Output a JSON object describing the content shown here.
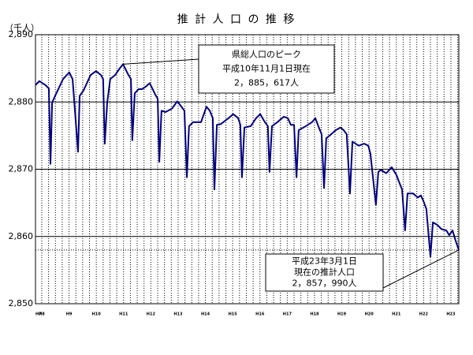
{
  "chart_data": {
    "type": "line",
    "title": "推 計 人 口 の 推 移",
    "y_label": "（千人）",
    "color": "#000080",
    "grid": true,
    "ylim": [
      2850,
      2890
    ],
    "yticks": [
      {
        "value": 2850,
        "label": "2,850"
      },
      {
        "value": 2860,
        "label": "2,860"
      },
      {
        "value": 2870,
        "label": "2,870"
      },
      {
        "value": 2880,
        "label": "2,880"
      },
      {
        "value": 2890,
        "label": "2,890"
      }
    ],
    "xlim": [
      7.77,
      23.29
    ],
    "xticks": [
      {
        "value": 7.77,
        "label": "H7"
      },
      {
        "value": 8,
        "label": "H8"
      },
      {
        "value": 9,
        "label": "H9"
      },
      {
        "value": 10,
        "label": "H10"
      },
      {
        "value": 11,
        "label": "H11"
      },
      {
        "value": 12,
        "label": "H12"
      },
      {
        "value": 13,
        "label": "H13"
      },
      {
        "value": 14,
        "label": "H14"
      },
      {
        "value": 15,
        "label": "H15"
      },
      {
        "value": 16,
        "label": "H16"
      },
      {
        "value": 17,
        "label": "H17"
      },
      {
        "value": 18,
        "label": "H18"
      },
      {
        "value": 19,
        "label": "H19"
      },
      {
        "value": 20,
        "label": "H20"
      },
      {
        "value": 21,
        "label": "H21"
      },
      {
        "value": 22,
        "label": "H22"
      },
      {
        "value": 23,
        "label": "H23"
      }
    ],
    "x": [
      7.77,
      7.91,
      8.14,
      8.26,
      8.32,
      8.38,
      8.49,
      8.78,
      9.01,
      9.13,
      9.33,
      9.39,
      9.53,
      9.79,
      9.99,
      10.17,
      10.25,
      10.31,
      10.4,
      10.51,
      10.69,
      10.86,
      10.98,
      11.18,
      11.27,
      11.32,
      11.41,
      11.55,
      11.67,
      11.82,
      11.96,
      12.16,
      12.25,
      12.31,
      12.39,
      12.54,
      12.77,
      12.97,
      13.12,
      13.23,
      13.32,
      13.4,
      13.55,
      13.84,
      14.04,
      14.16,
      14.27,
      14.33,
      14.42,
      14.56,
      14.85,
      15.02,
      15.2,
      15.28,
      15.34,
      15.43,
      15.66,
      15.86,
      16.01,
      16.18,
      16.29,
      16.35,
      16.44,
      16.64,
      16.87,
      17.02,
      17.13,
      17.25,
      17.34,
      17.42,
      17.68,
      17.91,
      18.03,
      18.14,
      18.26,
      18.35,
      18.43,
      18.61,
      18.78,
      18.95,
      19.07,
      19.18,
      19.3,
      19.39,
      19.62,
      19.82,
      19.97,
      20.05,
      20.25,
      20.34,
      20.43,
      20.63,
      20.83,
      21.01,
      21.09,
      21.21,
      21.32,
      21.41,
      21.61,
      21.79,
      21.9,
      21.99,
      22.1,
      22.25,
      22.34,
      22.51,
      22.65,
      22.83,
      22.94,
      23.06,
      23.17,
      23.29
    ],
    "values": [
      2882.5,
      2883.1,
      2882.5,
      2882.0,
      2870.8,
      2879.9,
      2880.9,
      2883.4,
      2884.4,
      2883.4,
      2872.6,
      2880.9,
      2881.7,
      2884.0,
      2884.6,
      2884.0,
      2883.4,
      2873.8,
      2879.9,
      2883.4,
      2884.0,
      2885.0,
      2885.617,
      2884.0,
      2883.4,
      2874.3,
      2881.3,
      2881.9,
      2881.9,
      2882.3,
      2882.8,
      2881.1,
      2880.5,
      2871.1,
      2878.7,
      2878.5,
      2879.0,
      2880.1,
      2879.3,
      2878.7,
      2868.8,
      2876.4,
      2877.0,
      2877.0,
      2879.3,
      2878.7,
      2877.6,
      2867.0,
      2876.6,
      2876.7,
      2877.6,
      2878.2,
      2877.6,
      2876.6,
      2868.8,
      2876.2,
      2876.4,
      2877.6,
      2878.2,
      2877.0,
      2876.4,
      2869.6,
      2876.4,
      2877.0,
      2877.8,
      2877.6,
      2876.6,
      2876.6,
      2868.8,
      2875.8,
      2876.4,
      2877.0,
      2877.6,
      2876.4,
      2875.2,
      2867.2,
      2874.6,
      2875.2,
      2875.8,
      2876.2,
      2875.8,
      2875.2,
      2866.4,
      2874.1,
      2873.5,
      2873.8,
      2873.5,
      2872.3,
      2864.7,
      2869.6,
      2869.9,
      2869.4,
      2870.3,
      2869.1,
      2868.2,
      2867.0,
      2860.9,
      2866.4,
      2866.4,
      2865.8,
      2866.1,
      2865.3,
      2864.1,
      2857.0,
      2862.1,
      2861.7,
      2861.1,
      2860.9,
      2860.2,
      2860.9,
      2859.4,
      2857.99
    ],
    "annotations": [
      {
        "lines": [
          "県総人口のピーク",
          "平成10年11月1日現在",
          "2，885，617人"
        ]
      },
      {
        "lines": [
          "平成23年3月1日",
          "現在の推計人口",
          "2，857，990人"
        ]
      }
    ]
  }
}
